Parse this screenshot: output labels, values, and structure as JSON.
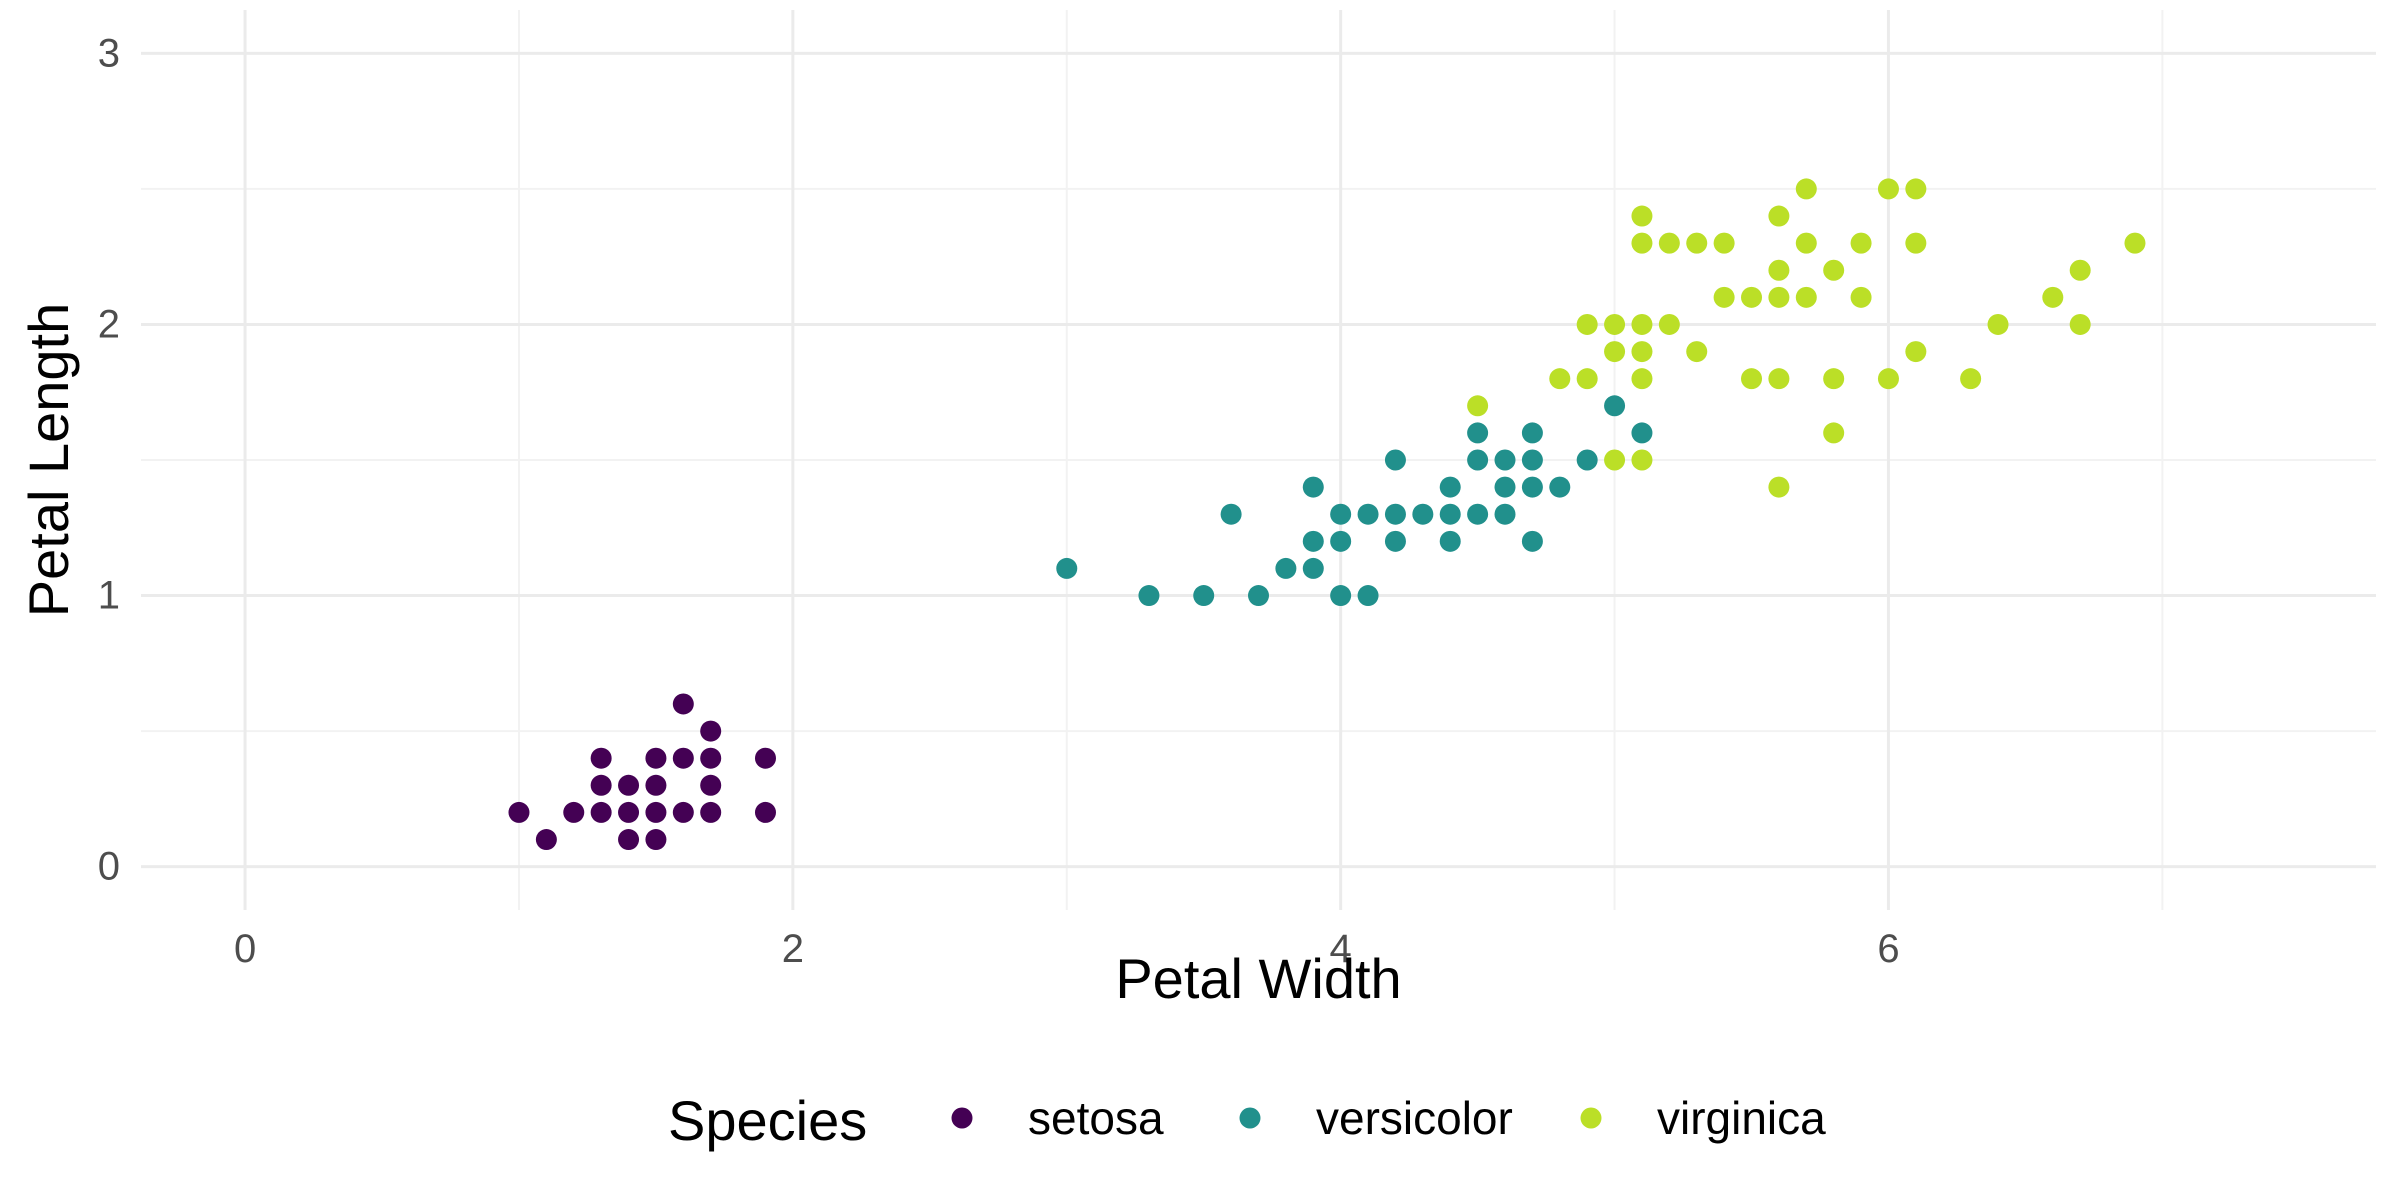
{
  "chart_data": {
    "type": "scatter",
    "xlabel": "Petal Width",
    "ylabel": "Petal Length",
    "xlim": [
      -0.38,
      7.78
    ],
    "ylim": [
      -0.16,
      3.16
    ],
    "x_ticks": [
      0,
      2,
      4,
      6
    ],
    "y_ticks": [
      0,
      1,
      2,
      3
    ],
    "grid": true,
    "legend": {
      "title": "Species",
      "position": "bottom"
    },
    "series": [
      {
        "name": "setosa",
        "color": "#440154",
        "points": [
          [
            1.0,
            0.2
          ],
          [
            1.1,
            0.1
          ],
          [
            1.2,
            0.2
          ],
          [
            1.3,
            0.2
          ],
          [
            1.3,
            0.3
          ],
          [
            1.3,
            0.4
          ],
          [
            1.4,
            0.1
          ],
          [
            1.4,
            0.2
          ],
          [
            1.4,
            0.3
          ],
          [
            1.5,
            0.1
          ],
          [
            1.5,
            0.2
          ],
          [
            1.5,
            0.3
          ],
          [
            1.5,
            0.4
          ],
          [
            1.6,
            0.2
          ],
          [
            1.6,
            0.4
          ],
          [
            1.6,
            0.6
          ],
          [
            1.7,
            0.2
          ],
          [
            1.7,
            0.3
          ],
          [
            1.7,
            0.4
          ],
          [
            1.7,
            0.5
          ],
          [
            1.9,
            0.2
          ],
          [
            1.9,
            0.4
          ]
        ]
      },
      {
        "name": "versicolor",
        "color": "#21908C",
        "points": [
          [
            3.0,
            1.1
          ],
          [
            3.3,
            1.0
          ],
          [
            3.5,
            1.0
          ],
          [
            3.6,
            1.3
          ],
          [
            3.7,
            1.0
          ],
          [
            3.8,
            1.1
          ],
          [
            3.9,
            1.1
          ],
          [
            3.9,
            1.2
          ],
          [
            3.9,
            1.4
          ],
          [
            4.0,
            1.0
          ],
          [
            4.0,
            1.2
          ],
          [
            4.0,
            1.3
          ],
          [
            4.1,
            1.0
          ],
          [
            4.1,
            1.3
          ],
          [
            4.2,
            1.2
          ],
          [
            4.2,
            1.3
          ],
          [
            4.2,
            1.5
          ],
          [
            4.3,
            1.3
          ],
          [
            4.4,
            1.2
          ],
          [
            4.4,
            1.3
          ],
          [
            4.4,
            1.4
          ],
          [
            4.5,
            1.3
          ],
          [
            4.5,
            1.5
          ],
          [
            4.5,
            1.6
          ],
          [
            4.6,
            1.3
          ],
          [
            4.6,
            1.4
          ],
          [
            4.6,
            1.5
          ],
          [
            4.7,
            1.2
          ],
          [
            4.7,
            1.4
          ],
          [
            4.7,
            1.5
          ],
          [
            4.7,
            1.6
          ],
          [
            4.8,
            1.4
          ],
          [
            4.9,
            1.5
          ],
          [
            5.0,
            1.7
          ],
          [
            5.1,
            1.6
          ]
        ]
      },
      {
        "name": "virginica",
        "color": "#BBDF27",
        "points": [
          [
            4.5,
            1.7
          ],
          [
            4.8,
            1.8
          ],
          [
            4.9,
            1.8
          ],
          [
            4.9,
            2.0
          ],
          [
            5.0,
            1.5
          ],
          [
            5.0,
            1.9
          ],
          [
            5.0,
            2.0
          ],
          [
            5.1,
            1.5
          ],
          [
            5.1,
            1.8
          ],
          [
            5.1,
            1.9
          ],
          [
            5.1,
            2.0
          ],
          [
            5.1,
            2.3
          ],
          [
            5.1,
            2.4
          ],
          [
            5.2,
            2.0
          ],
          [
            5.2,
            2.3
          ],
          [
            5.3,
            1.9
          ],
          [
            5.3,
            2.3
          ],
          [
            5.4,
            2.1
          ],
          [
            5.4,
            2.3
          ],
          [
            5.5,
            1.8
          ],
          [
            5.5,
            2.1
          ],
          [
            5.6,
            1.4
          ],
          [
            5.6,
            1.8
          ],
          [
            5.6,
            2.1
          ],
          [
            5.6,
            2.2
          ],
          [
            5.6,
            2.4
          ],
          [
            5.7,
            2.1
          ],
          [
            5.7,
            2.3
          ],
          [
            5.7,
            2.5
          ],
          [
            5.8,
            1.6
          ],
          [
            5.8,
            1.8
          ],
          [
            5.8,
            2.2
          ],
          [
            5.9,
            2.1
          ],
          [
            5.9,
            2.3
          ],
          [
            6.0,
            1.8
          ],
          [
            6.0,
            2.5
          ],
          [
            6.1,
            1.9
          ],
          [
            6.1,
            2.3
          ],
          [
            6.1,
            2.5
          ],
          [
            6.3,
            1.8
          ],
          [
            6.4,
            2.0
          ],
          [
            6.6,
            2.1
          ],
          [
            6.7,
            2.0
          ],
          [
            6.7,
            2.2
          ],
          [
            6.9,
            2.3
          ]
        ]
      }
    ]
  }
}
